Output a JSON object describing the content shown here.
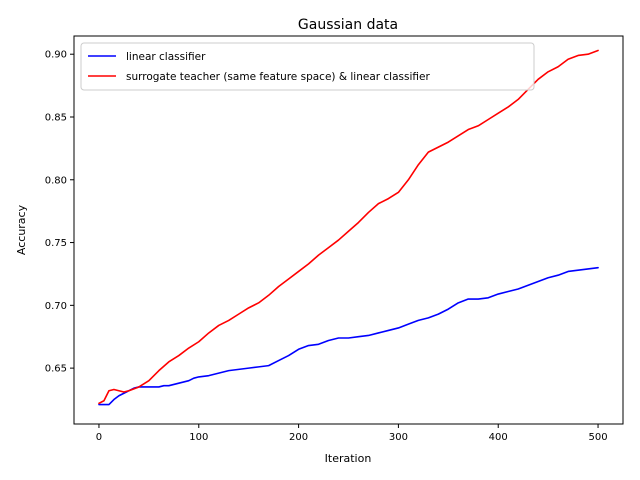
{
  "chart_data": {
    "type": "line",
    "title": "Gaussian data",
    "xlabel": "Iteration",
    "ylabel": "Accuracy",
    "xlim": [
      -25,
      525
    ],
    "ylim": [
      0.6055,
      0.9145
    ],
    "xticks": [
      0,
      100,
      200,
      300,
      400,
      500
    ],
    "yticks": [
      0.65,
      0.7,
      0.75,
      0.8,
      0.85,
      0.9
    ],
    "xtick_labels": [
      "0",
      "100",
      "200",
      "300",
      "400",
      "500"
    ],
    "ytick_labels": [
      "0.65",
      "0.70",
      "0.75",
      "0.80",
      "0.85",
      "0.90"
    ],
    "legend_position": "upper-left",
    "grid": false,
    "series": [
      {
        "name": "linear classifier",
        "color": "#0000ff",
        "x": [
          0,
          5,
          10,
          15,
          20,
          25,
          30,
          35,
          40,
          45,
          50,
          55,
          60,
          65,
          70,
          75,
          80,
          85,
          90,
          95,
          100,
          110,
          120,
          130,
          140,
          150,
          160,
          170,
          180,
          190,
          200,
          210,
          220,
          230,
          240,
          250,
          260,
          270,
          280,
          290,
          300,
          310,
          320,
          330,
          340,
          350,
          360,
          370,
          380,
          390,
          400,
          410,
          420,
          430,
          440,
          450,
          460,
          470,
          480,
          490,
          500
        ],
        "values": [
          0.621,
          0.621,
          0.621,
          0.625,
          0.628,
          0.63,
          0.632,
          0.634,
          0.635,
          0.635,
          0.635,
          0.635,
          0.635,
          0.636,
          0.636,
          0.637,
          0.638,
          0.639,
          0.64,
          0.642,
          0.643,
          0.644,
          0.646,
          0.648,
          0.649,
          0.65,
          0.651,
          0.652,
          0.656,
          0.66,
          0.665,
          0.668,
          0.669,
          0.672,
          0.674,
          0.674,
          0.675,
          0.676,
          0.678,
          0.68,
          0.682,
          0.685,
          0.688,
          0.69,
          0.693,
          0.697,
          0.702,
          0.705,
          0.705,
          0.706,
          0.709,
          0.711,
          0.713,
          0.716,
          0.719,
          0.722,
          0.724,
          0.727,
          0.728,
          0.729,
          0.73
        ]
      },
      {
        "name": "surrogate teacher (same feature space) & linear classifier",
        "color": "#ff0000",
        "x": [
          0,
          5,
          10,
          15,
          20,
          25,
          30,
          40,
          50,
          60,
          70,
          80,
          90,
          100,
          110,
          120,
          130,
          140,
          150,
          160,
          170,
          180,
          190,
          200,
          210,
          220,
          230,
          240,
          250,
          260,
          270,
          280,
          290,
          300,
          310,
          320,
          330,
          340,
          350,
          360,
          370,
          380,
          390,
          400,
          410,
          420,
          430,
          440,
          450,
          460,
          470,
          480,
          490,
          500
        ],
        "values": [
          0.622,
          0.624,
          0.632,
          0.633,
          0.632,
          0.631,
          0.632,
          0.635,
          0.64,
          0.648,
          0.655,
          0.66,
          0.666,
          0.671,
          0.678,
          0.684,
          0.688,
          0.693,
          0.698,
          0.702,
          0.708,
          0.715,
          0.721,
          0.727,
          0.733,
          0.74,
          0.746,
          0.752,
          0.759,
          0.766,
          0.774,
          0.781,
          0.785,
          0.79,
          0.8,
          0.812,
          0.822,
          0.826,
          0.83,
          0.835,
          0.84,
          0.843,
          0.848,
          0.853,
          0.858,
          0.864,
          0.872,
          0.88,
          0.886,
          0.89,
          0.896,
          0.899,
          0.9,
          0.903
        ]
      }
    ]
  }
}
